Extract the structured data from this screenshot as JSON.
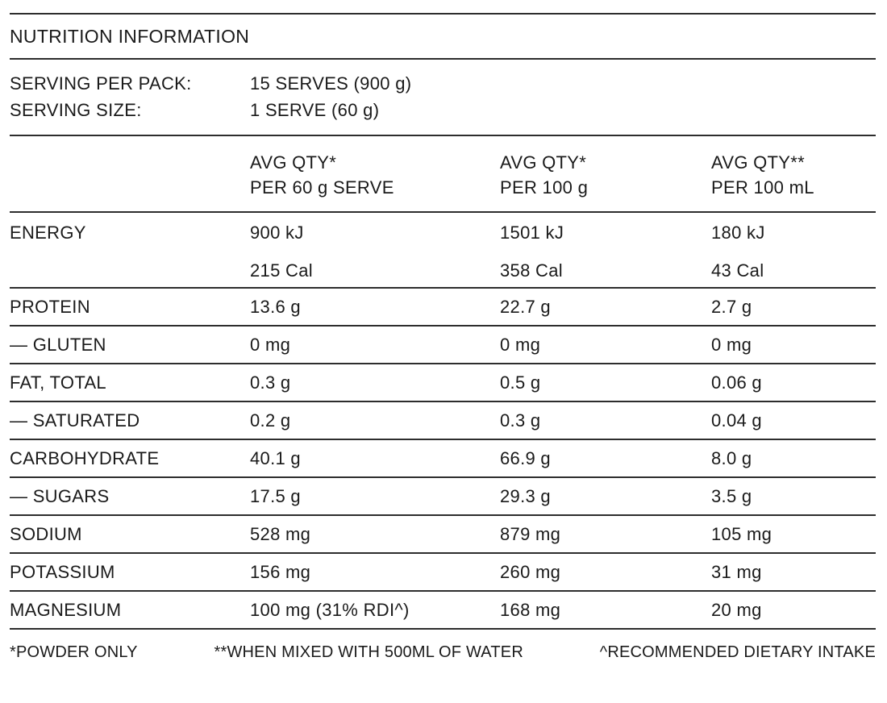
{
  "title": "NUTRITION INFORMATION",
  "colors": {
    "text": "#1a1a1a",
    "rule": "#2d2d2d",
    "background": "#ffffff"
  },
  "serving_info": {
    "rows": [
      {
        "label": "SERVING PER PACK:",
        "value": "15 SERVES (900 g)"
      },
      {
        "label": "SERVING SIZE:",
        "value": "1 SERVE (60 g)"
      }
    ]
  },
  "table": {
    "column_headers": [
      {
        "line1": "AVG QTY*",
        "line2": "PER 60 g SERVE"
      },
      {
        "line1": "AVG QTY*",
        "line2": "PER 100 g"
      },
      {
        "line1": "AVG QTY**",
        "line2": "PER 100 mL"
      }
    ],
    "rows": [
      {
        "label": "ENERGY",
        "kj": [
          "900 kJ",
          "1501 kJ",
          "180 kJ"
        ],
        "cal": [
          "215 Cal",
          "358 Cal",
          "43 Cal"
        ]
      },
      {
        "label": "PROTEIN",
        "values": [
          "13.6 g",
          "22.7 g",
          "2.7 g"
        ]
      },
      {
        "label": "— GLUTEN",
        "values": [
          "0 mg",
          "0 mg",
          "0 mg"
        ]
      },
      {
        "label": "FAT, TOTAL",
        "values": [
          "0.3 g",
          "0.5 g",
          "0.06 g"
        ]
      },
      {
        "label": "— SATURATED",
        "values": [
          "0.2 g",
          "0.3 g",
          "0.04 g"
        ]
      },
      {
        "label": "CARBOHYDRATE",
        "values": [
          "40.1 g",
          "66.9 g",
          "8.0 g"
        ]
      },
      {
        "label": "— SUGARS",
        "values": [
          "17.5 g",
          "29.3 g",
          "3.5 g"
        ]
      },
      {
        "label": "SODIUM",
        "values": [
          "528 mg",
          "879 mg",
          "105 mg"
        ]
      },
      {
        "label": "POTASSIUM",
        "values": [
          "156 mg",
          "260 mg",
          "31 mg"
        ]
      },
      {
        "label": "MAGNESIUM",
        "values": [
          "100 mg (31% RDI^)",
          "168 mg",
          "20 mg"
        ]
      }
    ]
  },
  "footnotes": [
    "*POWDER ONLY",
    "**WHEN MIXED WITH 500ML OF WATER",
    "^RECOMMENDED DIETARY INTAKE"
  ]
}
